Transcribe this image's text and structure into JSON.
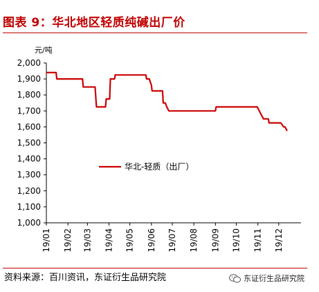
{
  "title": "图表 9：华北地区轻质纯碱出厂价",
  "source": "资料来源：百川资讯，东证衍生品研究院",
  "watermark": {
    "text": "东证衍生品研究院",
    "icon": "wechat-icon"
  },
  "colors": {
    "accent": "#c00000",
    "line": "#cc0000"
  },
  "chart_data": {
    "type": "line",
    "title": "",
    "xlabel": "",
    "ylabel": "元/吨",
    "ylim": [
      1000,
      2000
    ],
    "yticks": [
      1000,
      1100,
      1200,
      1300,
      1400,
      1500,
      1600,
      1700,
      1800,
      1900,
      2000
    ],
    "ytick_labels": [
      "1,000",
      "1,100",
      "1,200",
      "1,300",
      "1,400",
      "1,500",
      "1,600",
      "1,700",
      "1,800",
      "1,900",
      "2,000"
    ],
    "xlim": [
      "2019-01-01",
      "2019-12-31"
    ],
    "xticks": [
      "2019-01-01",
      "2019-02-01",
      "2019-03-01",
      "2019-04-01",
      "2019-05-01",
      "2019-06-01",
      "2019-07-01",
      "2019-08-01",
      "2019-09-01",
      "2019-10-01",
      "2019-11-01",
      "2019-12-01"
    ],
    "xtick_labels": [
      "19/01",
      "19/02",
      "19/03",
      "19/04",
      "19/05",
      "19/06",
      "19/07",
      "19/08",
      "19/09",
      "19/10",
      "19/11",
      "19/12"
    ],
    "grid": false,
    "legend": "center-left",
    "series": [
      {
        "name": "华北-轻质（出厂）",
        "color": "#cc0000",
        "points": [
          [
            "2019-01-01",
            1940
          ],
          [
            "2019-01-15",
            1940
          ],
          [
            "2019-01-16",
            1900
          ],
          [
            "2019-02-22",
            1900
          ],
          [
            "2019-02-23",
            1850
          ],
          [
            "2019-03-12",
            1850
          ],
          [
            "2019-03-14",
            1725
          ],
          [
            "2019-03-27",
            1725
          ],
          [
            "2019-03-28",
            1775
          ],
          [
            "2019-04-02",
            1775
          ],
          [
            "2019-04-03",
            1900
          ],
          [
            "2019-04-09",
            1900
          ],
          [
            "2019-04-10",
            1925
          ],
          [
            "2019-05-24",
            1925
          ],
          [
            "2019-05-25",
            1900
          ],
          [
            "2019-05-29",
            1900
          ],
          [
            "2019-06-01",
            1860
          ],
          [
            "2019-06-02",
            1825
          ],
          [
            "2019-06-17",
            1825
          ],
          [
            "2019-06-18",
            1750
          ],
          [
            "2019-06-21",
            1750
          ],
          [
            "2019-06-23",
            1725
          ],
          [
            "2019-06-26",
            1700
          ],
          [
            "2019-09-01",
            1700
          ],
          [
            "2019-09-02",
            1725
          ],
          [
            "2019-10-31",
            1725
          ],
          [
            "2019-11-03",
            1700
          ],
          [
            "2019-11-06",
            1675
          ],
          [
            "2019-11-09",
            1650
          ],
          [
            "2019-11-16",
            1650
          ],
          [
            "2019-11-17",
            1625
          ],
          [
            "2019-12-04",
            1625
          ],
          [
            "2019-12-08",
            1600
          ],
          [
            "2019-12-10",
            1600
          ],
          [
            "2019-12-13",
            1575
          ]
        ]
      }
    ]
  }
}
